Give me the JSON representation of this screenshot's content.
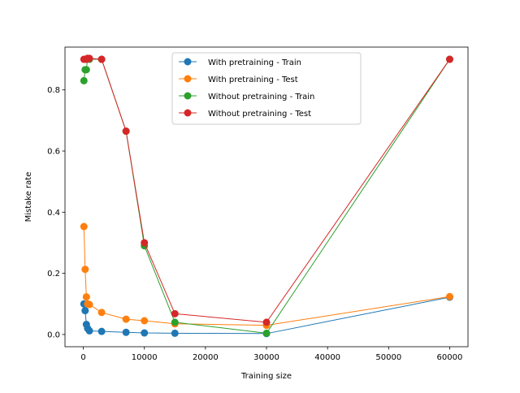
{
  "chart_data": {
    "type": "line",
    "title": "",
    "xlabel": "Training size",
    "ylabel": "Mistake rate",
    "xlim": [
      -3000,
      63000
    ],
    "ylim": [
      -0.04,
      0.94
    ],
    "xticks": [
      0,
      10000,
      20000,
      30000,
      40000,
      50000,
      60000
    ],
    "xtick_labels": [
      "0",
      "10000",
      "20000",
      "30000",
      "40000",
      "50000",
      "60000"
    ],
    "yticks": [
      0.0,
      0.2,
      0.4,
      0.6,
      0.8
    ],
    "ytick_labels": [
      "0.0",
      "0.2",
      "0.4",
      "0.6",
      "0.8"
    ],
    "grid": false,
    "legend_position": "top-center",
    "x": [
      100,
      300,
      500,
      700,
      1000,
      3000,
      7000,
      10000,
      15000,
      30000,
      60000
    ],
    "series": [
      {
        "name": "With pretraining - Train",
        "color": "#1f77b4",
        "values": [
          0.1,
          0.078,
          0.033,
          0.02,
          0.012,
          0.01,
          0.007,
          0.005,
          0.004,
          0.003,
          0.122
        ]
      },
      {
        "name": "With pretraining - Test",
        "color": "#ff7f0e",
        "values": [
          0.353,
          0.213,
          0.123,
          0.1,
          0.098,
          0.072,
          0.05,
          0.045,
          0.035,
          0.03,
          0.124
        ]
      },
      {
        "name": "Without pretraining - Train",
        "color": "#2ca02c",
        "values": [
          0.83,
          0.866,
          0.866,
          0.903,
          0.9,
          0.9,
          0.665,
          0.29,
          0.04,
          0.004,
          0.9
        ]
      },
      {
        "name": "Without pretraining - Test",
        "color": "#d62728",
        "values": [
          0.9,
          0.9,
          0.9,
          0.903,
          0.903,
          0.9,
          0.665,
          0.3,
          0.068,
          0.04,
          0.9
        ]
      }
    ]
  }
}
